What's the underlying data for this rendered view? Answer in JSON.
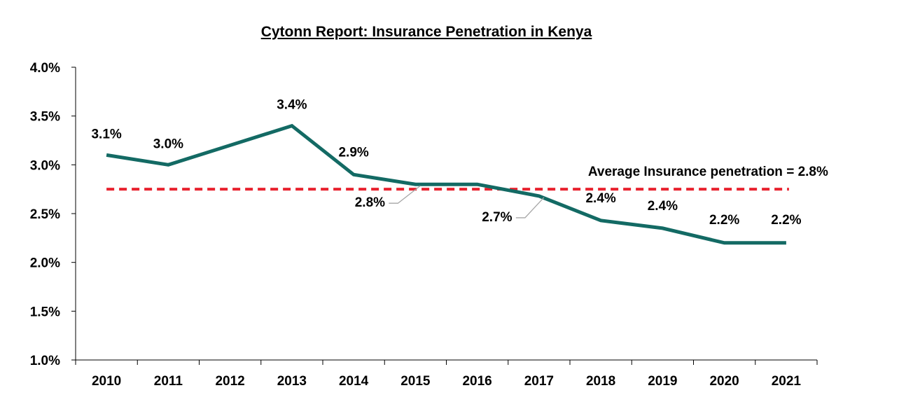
{
  "chart_data": {
    "type": "line",
    "title": "Cytonn Report: Insurance Penetration in Kenya",
    "categories": [
      "2010",
      "2011",
      "2012",
      "2013",
      "2014",
      "2015",
      "2016",
      "2017",
      "2018",
      "2019",
      "2020",
      "2021"
    ],
    "series": [
      {
        "values": [
          3.1,
          3.0,
          3.2,
          3.4,
          2.9,
          2.8,
          2.8,
          2.68,
          2.43,
          2.35,
          2.2,
          2.2
        ],
        "data_labels": [
          "3.1%",
          "3.0%",
          null,
          "3.4%",
          "2.9%",
          "2.8%",
          null,
          "2.7%",
          "2.4%",
          "2.4%",
          "2.2%",
          "2.2%"
        ],
        "color": "#136a64"
      }
    ],
    "average": {
      "value": 2.75,
      "label": "Average Insurance penetration = 2.8%",
      "color": "#e8212e"
    },
    "y_ticks": [
      "1.0%",
      "1.5%",
      "2.0%",
      "2.5%",
      "3.0%",
      "3.5%",
      "4.0%"
    ],
    "ylim": [
      1.0,
      4.0
    ],
    "xlabel": "",
    "ylabel": ""
  }
}
